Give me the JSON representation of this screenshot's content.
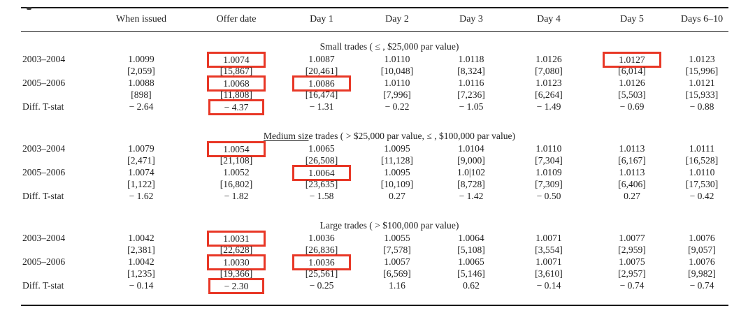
{
  "colors": {
    "highlight_box": "#e83726",
    "rule": "#1a1a1a",
    "text": "#1f1f1f"
  },
  "artifact_note": "tiny cut-off glyph descender at top-left of crop",
  "table": {
    "columns": [
      "",
      "When issued",
      "Offer date",
      "Day 1",
      "Day 2",
      "Day 3",
      "Day 4",
      "Day 5",
      "Days 6–10"
    ],
    "sections": [
      {
        "title_parts": [
          {
            "text": "Small trades ( ≤ , $25,000 par value)",
            "underline": false
          }
        ],
        "rows": [
          {
            "label": "2003–2004",
            "values": [
              "1.0099",
              "1.0074",
              "1.0087",
              "1.0110",
              "1.0118",
              "1.0126",
              "1.0127",
              "1.0123"
            ],
            "boxed": [
              1,
              6
            ],
            "brackets": [
              "[2,059]",
              "[15,867]",
              "[20,461]",
              "[10,048]",
              "[8,324]",
              "[7,080]",
              "[6,014]",
              "[15,996]"
            ]
          },
          {
            "label": "2005–2006",
            "values": [
              "1.0088",
              "1.0068",
              "1.0086",
              "1.0110",
              "1.0116",
              "1.0123",
              "1.0126",
              "1.0121"
            ],
            "boxed": [
              1,
              2
            ],
            "brackets": [
              "[898]",
              "[11,808]",
              "[16,474]",
              "[7,996]",
              "[7,236]",
              "[6,264]",
              "[5,503]",
              "[15,933]"
            ]
          },
          {
            "label": "Diff. T-stat",
            "values": [
              "− 2.64",
              "− 4.37",
              "− 1.31",
              "− 0.22",
              "− 1.05",
              "− 1.49",
              "− 0.69",
              "− 0.88"
            ],
            "boxed": [
              1
            ]
          }
        ]
      },
      {
        "title_parts": [
          {
            "text": "Medium siz",
            "underline": true
          },
          {
            "text": "e trades ( > $25,000 par value, ≤ , $100,000 par value)",
            "underline": false
          }
        ],
        "rows": [
          {
            "label": "2003–2004",
            "values": [
              "1.0079",
              "1.0054",
              "1.0065",
              "1.0095",
              "1.0104",
              "1.0110",
              "1.0113",
              "1.0111"
            ],
            "boxed": [
              1
            ],
            "brackets": [
              "[2,471]",
              "[21,108]",
              "[26,508]",
              "[11,128]",
              "[9,000]",
              "[7,304]",
              "[6,167]",
              "[16,528]"
            ]
          },
          {
            "label": "2005–2006",
            "values": [
              "1.0074",
              "1.0052",
              "1.0064",
              "1.0095",
              "1.0|102",
              "1.0109",
              "1.0113",
              "1.0110"
            ],
            "boxed": [
              2
            ],
            "brackets": [
              "[1,122]",
              "[16,802]",
              "[23,635]",
              "[10,109]",
              "[8,728]",
              "[7,309]",
              "[6,406]",
              "[17,530]"
            ]
          },
          {
            "label": "Diff. T-stat",
            "values": [
              "− 1.62",
              "− 1.82",
              "− 1.58",
              "0.27",
              "− 1.42",
              "− 0.50",
              "0.27",
              "− 0.42"
            ],
            "boxed": []
          }
        ]
      },
      {
        "title_parts": [
          {
            "text": "Large trades ( > $100,000 par value)",
            "underline": false
          }
        ],
        "rows": [
          {
            "label": "2003–2004",
            "values": [
              "1.0042",
              "1.0031",
              "1.0036",
              "1.0055",
              "1.0064",
              "1.0071",
              "1.0077",
              "1.0076"
            ],
            "boxed": [
              1
            ],
            "brackets": [
              "[2,381]",
              "[22,628]",
              "[26,836]",
              "[7,578]",
              "[5,108]",
              "[3,554]",
              "[2,959]",
              "[9,057]"
            ]
          },
          {
            "label": "2005–2006",
            "values": [
              "1.0042",
              "1.0030",
              "1.0036",
              "1.0057",
              "1.0065",
              "1.0071",
              "1.0075",
              "1.0076"
            ],
            "boxed": [
              1,
              2
            ],
            "brackets": [
              "[1,235]",
              "[19,366]",
              "[25,561]",
              "[6,569]",
              "[5,146]",
              "[3,610]",
              "[2,957]",
              "[9,982]"
            ]
          },
          {
            "label": "Diff. T-stat",
            "values": [
              "− 0.14",
              "− 2.30",
              "− 0.25",
              "1.16",
              "0.62",
              "− 0.14",
              "− 0.74",
              "− 0.74"
            ],
            "boxed": [
              1
            ]
          }
        ]
      }
    ]
  }
}
